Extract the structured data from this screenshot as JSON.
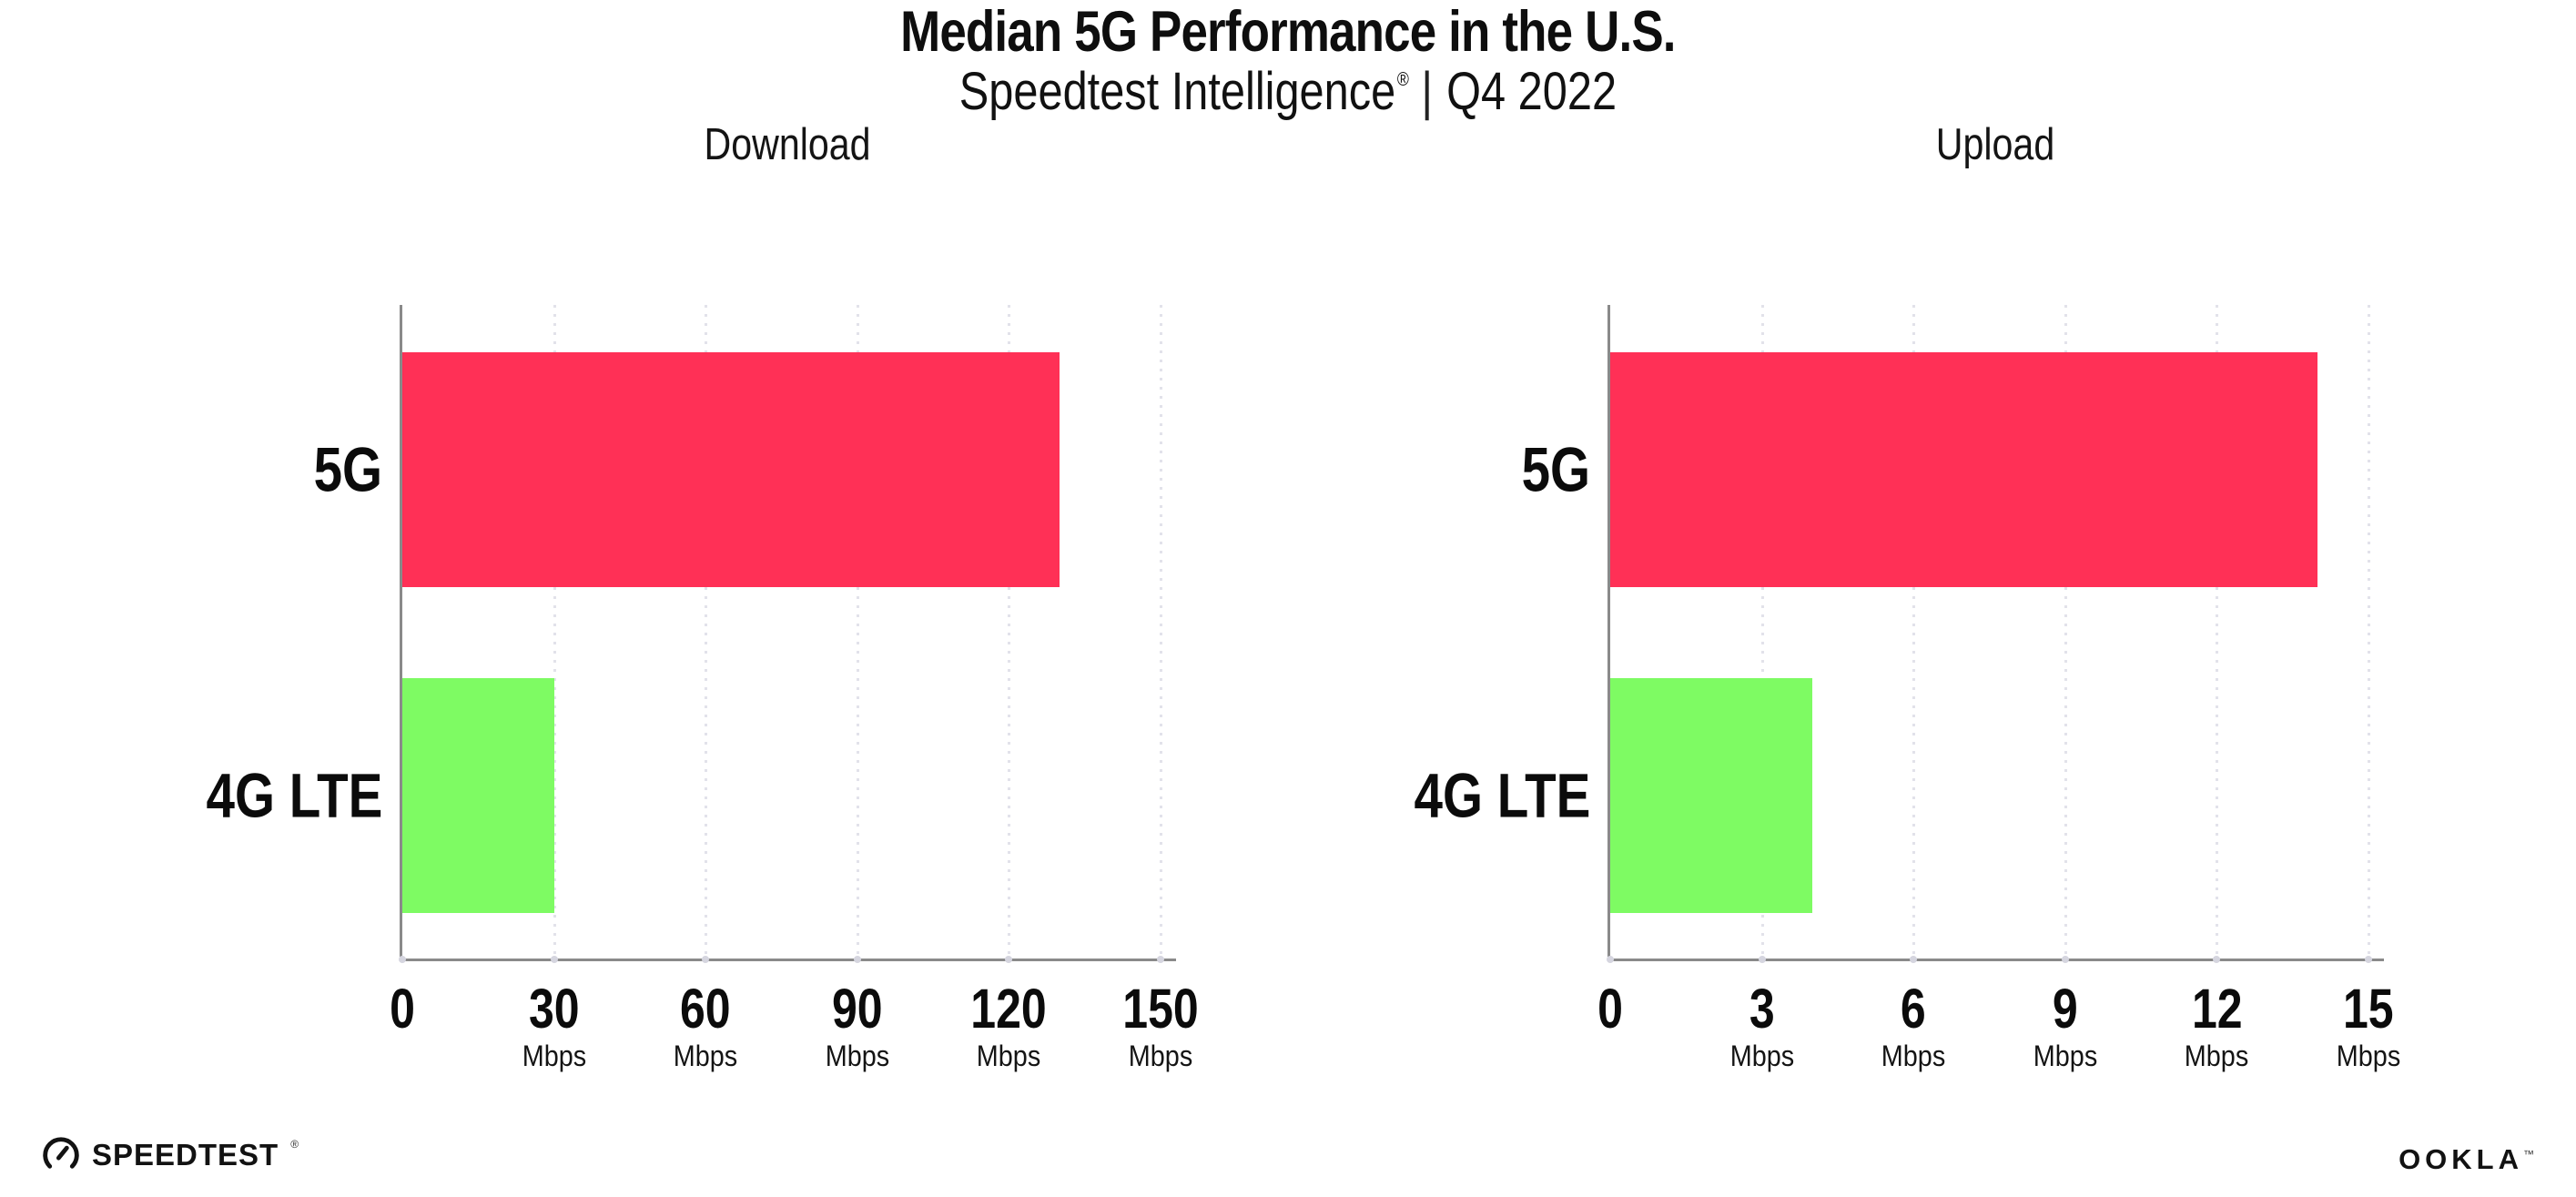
{
  "title": "Median 5G Performance in the U.S.",
  "subtitle": {
    "brand": "Speedtest Intelligence",
    "registered_mark": "®",
    "separator": "|",
    "period": "Q4 2022"
  },
  "footer": {
    "speedtest_wordmark": "SPEEDTEST",
    "speedtest_mark": "®",
    "ookla_wordmark": "OOKLA",
    "ookla_mark": "™"
  },
  "colors": {
    "bar_5g": "#FF3056",
    "bar_4g_lte": "#7EFB63",
    "axis": "#8A8A8A",
    "gridline": "#E2E2EA",
    "tick_dot": "#D5D5DF",
    "text": "#0E0E0E"
  },
  "chart_data": [
    {
      "type": "bar",
      "orientation": "horizontal",
      "title": "Download",
      "categories": [
        "5G",
        "4G LTE"
      ],
      "values": [
        130,
        30
      ],
      "unit": "Mbps",
      "xlabel": "",
      "ylabel": "",
      "xlim": [
        0,
        150
      ],
      "xticks": [
        0,
        30,
        60,
        90,
        120,
        150
      ],
      "bar_colors": [
        "#FF3056",
        "#7EFB63"
      ],
      "grid": "dotted-vertical",
      "legend": "none"
    },
    {
      "type": "bar",
      "orientation": "horizontal",
      "title": "Upload",
      "categories": [
        "5G",
        "4G LTE"
      ],
      "values": [
        14,
        4
      ],
      "unit": "Mbps",
      "xlabel": "",
      "ylabel": "",
      "xlim": [
        0,
        15
      ],
      "xticks": [
        0,
        3,
        6,
        9,
        12,
        15
      ],
      "bar_colors": [
        "#FF3056",
        "#7EFB63"
      ],
      "grid": "dotted-vertical",
      "legend": "none"
    }
  ]
}
